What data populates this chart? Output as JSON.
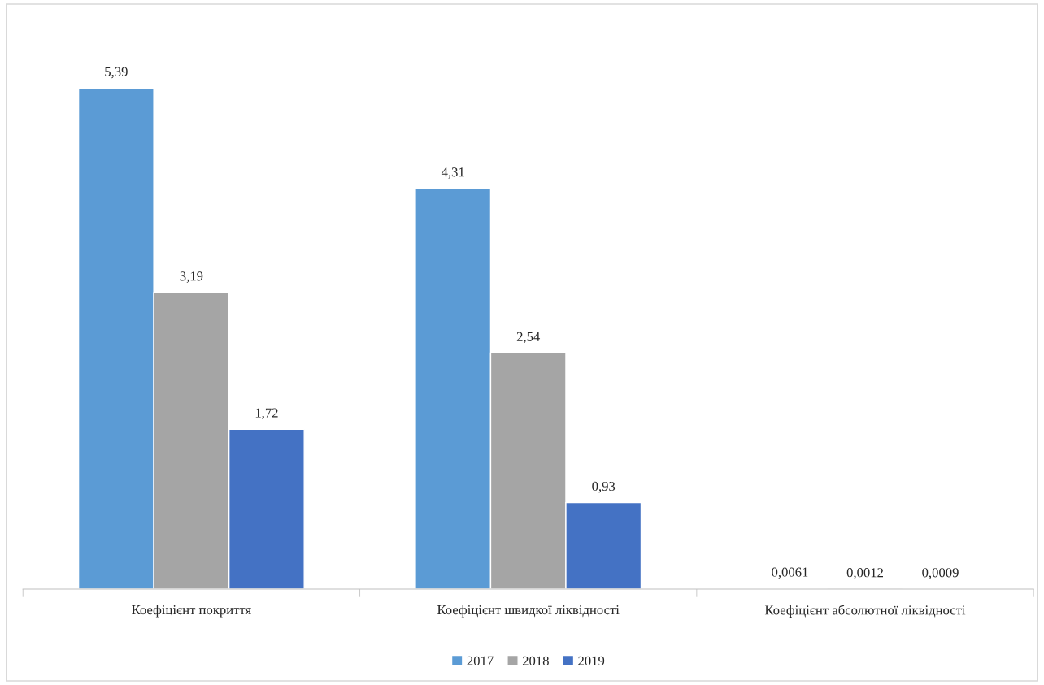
{
  "chart_data": {
    "type": "bar",
    "categories": [
      "Коефіцієнт покриття",
      "Коефіцієнт швидкої ліквідності",
      "Коефіцієнт абсолютної ліквідності"
    ],
    "series": [
      {
        "name": "2017",
        "color": "#5b9bd5",
        "values": [
          5.39,
          4.31,
          0.0061
        ],
        "value_labels": [
          "5,39",
          "4,31",
          "0,0061"
        ]
      },
      {
        "name": "2018",
        "color": "#a5a5a5",
        "values": [
          3.19,
          2.54,
          0.0012
        ],
        "value_labels": [
          "3,19",
          "2,54",
          "0,0012"
        ]
      },
      {
        "name": "2019",
        "color": "#4472c4",
        "values": [
          1.72,
          0.93,
          0.0009
        ],
        "value_labels": [
          "1,72",
          "0,93",
          "0,0009"
        ]
      }
    ],
    "legend": "bottom"
  }
}
